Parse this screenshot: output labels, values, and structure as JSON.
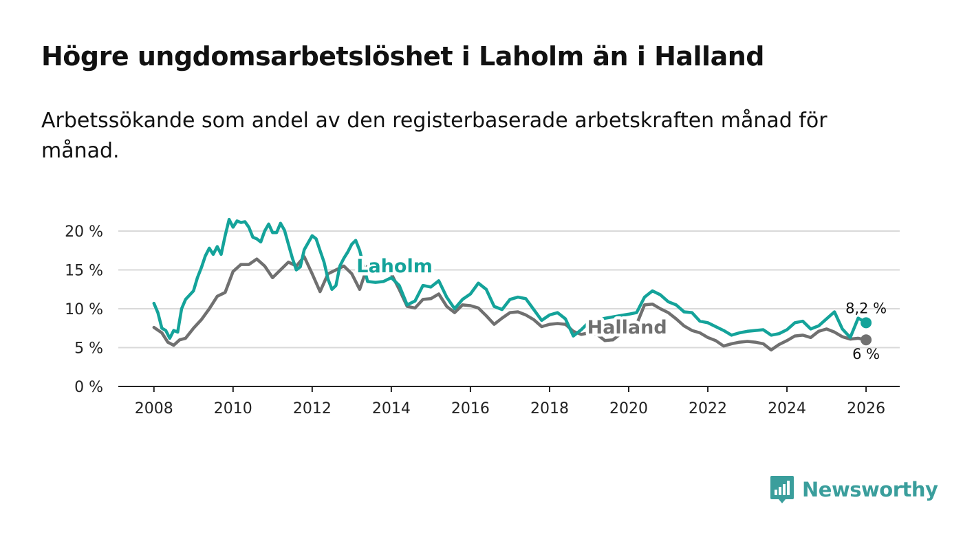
{
  "title": "Högre ungdomsarbetslöshet i Laholm än i Halland",
  "subtitle": "Arbetssökande som andel av den registerbaserade arbetskraften månad för månad.",
  "brand": {
    "name": "Newsworthy",
    "icon": "newsworthy-logo-icon",
    "color": "#3a9e9c"
  },
  "chart_data": {
    "type": "line",
    "xlim": [
      2007.1,
      2026.85
    ],
    "ylim": [
      0,
      20
    ],
    "x_ticks": [
      {
        "value": 2008,
        "label": "2008"
      },
      {
        "value": 2010,
        "label": "2010"
      },
      {
        "value": 2012,
        "label": "2012"
      },
      {
        "value": 2014,
        "label": "2014"
      },
      {
        "value": 2016,
        "label": "2016"
      },
      {
        "value": 2018,
        "label": "2018"
      },
      {
        "value": 2020,
        "label": "2020"
      },
      {
        "value": 2022,
        "label": "2022"
      },
      {
        "value": 2024,
        "label": "2024"
      },
      {
        "value": 2026,
        "label": "2026"
      }
    ],
    "y_ticks": [
      {
        "value": 0,
        "label": "0 %"
      },
      {
        "value": 5,
        "label": "5 %"
      },
      {
        "value": 10,
        "label": "10 %"
      },
      {
        "value": 15,
        "label": "15 %"
      },
      {
        "value": 20,
        "label": "20 %"
      }
    ],
    "grid": true,
    "series": [
      {
        "name": "Halland",
        "color": "#707070",
        "end_label": "6 %",
        "points": [
          [
            2008.0,
            7.6
          ],
          [
            2008.2,
            6.9
          ],
          [
            2008.35,
            5.7
          ],
          [
            2008.5,
            5.3
          ],
          [
            2008.65,
            6.0
          ],
          [
            2008.8,
            6.2
          ],
          [
            2009.0,
            7.5
          ],
          [
            2009.2,
            8.6
          ],
          [
            2009.4,
            10.0
          ],
          [
            2009.6,
            11.6
          ],
          [
            2009.8,
            12.1
          ],
          [
            2010.0,
            14.8
          ],
          [
            2010.2,
            15.7
          ],
          [
            2010.4,
            15.7
          ],
          [
            2010.6,
            16.4
          ],
          [
            2010.8,
            15.5
          ],
          [
            2011.0,
            14.0
          ],
          [
            2011.2,
            15.0
          ],
          [
            2011.4,
            16.0
          ],
          [
            2011.6,
            15.5
          ],
          [
            2011.8,
            16.7
          ],
          [
            2012.0,
            14.5
          ],
          [
            2012.2,
            12.2
          ],
          [
            2012.4,
            14.5
          ],
          [
            2012.6,
            15.0
          ],
          [
            2012.8,
            15.5
          ],
          [
            2013.0,
            14.5
          ],
          [
            2013.2,
            12.5
          ],
          [
            2013.4,
            15.5
          ],
          [
            2013.6,
            15.8
          ],
          [
            2013.8,
            15.4
          ],
          [
            2014.0,
            14.5
          ],
          [
            2014.2,
            12.5
          ],
          [
            2014.4,
            10.3
          ],
          [
            2014.6,
            10.1
          ],
          [
            2014.8,
            11.2
          ],
          [
            2015.0,
            11.3
          ],
          [
            2015.2,
            11.9
          ],
          [
            2015.4,
            10.3
          ],
          [
            2015.6,
            9.5
          ],
          [
            2015.8,
            10.5
          ],
          [
            2016.0,
            10.4
          ],
          [
            2016.2,
            10.1
          ],
          [
            2016.4,
            9.1
          ],
          [
            2016.6,
            8.0
          ],
          [
            2016.8,
            8.8
          ],
          [
            2017.0,
            9.5
          ],
          [
            2017.2,
            9.6
          ],
          [
            2017.4,
            9.2
          ],
          [
            2017.6,
            8.6
          ],
          [
            2017.8,
            7.7
          ],
          [
            2018.0,
            8.0
          ],
          [
            2018.2,
            8.1
          ],
          [
            2018.4,
            8.0
          ],
          [
            2018.6,
            7.1
          ],
          [
            2018.8,
            6.7
          ],
          [
            2019.0,
            6.9
          ],
          [
            2019.2,
            6.7
          ],
          [
            2019.4,
            5.9
          ],
          [
            2019.6,
            6.0
          ],
          [
            2019.8,
            6.8
          ],
          [
            2020.0,
            7.5
          ],
          [
            2020.2,
            8.0
          ],
          [
            2020.4,
            10.5
          ],
          [
            2020.6,
            10.6
          ],
          [
            2020.8,
            10.0
          ],
          [
            2021.0,
            9.5
          ],
          [
            2021.2,
            8.7
          ],
          [
            2021.4,
            7.8
          ],
          [
            2021.6,
            7.2
          ],
          [
            2021.8,
            6.9
          ],
          [
            2022.0,
            6.3
          ],
          [
            2022.2,
            5.9
          ],
          [
            2022.4,
            5.2
          ],
          [
            2022.6,
            5.5
          ],
          [
            2022.8,
            5.7
          ],
          [
            2023.0,
            5.8
          ],
          [
            2023.2,
            5.7
          ],
          [
            2023.4,
            5.5
          ],
          [
            2023.6,
            4.7
          ],
          [
            2023.8,
            5.4
          ],
          [
            2024.0,
            5.9
          ],
          [
            2024.2,
            6.5
          ],
          [
            2024.4,
            6.6
          ],
          [
            2024.6,
            6.3
          ],
          [
            2024.8,
            7.1
          ],
          [
            2025.0,
            7.4
          ],
          [
            2025.2,
            7.0
          ],
          [
            2025.4,
            6.4
          ],
          [
            2025.6,
            6.1
          ],
          [
            2025.8,
            6.2
          ],
          [
            2026.0,
            6.0
          ]
        ]
      },
      {
        "name": "Laholm",
        "color": "#14a39a",
        "end_label": "8,2 %",
        "points": [
          [
            2008.0,
            10.7
          ],
          [
            2008.1,
            9.5
          ],
          [
            2008.2,
            7.5
          ],
          [
            2008.3,
            7.2
          ],
          [
            2008.4,
            6.2
          ],
          [
            2008.5,
            7.2
          ],
          [
            2008.6,
            7.0
          ],
          [
            2008.7,
            10.0
          ],
          [
            2008.8,
            11.2
          ],
          [
            2009.0,
            12.3
          ],
          [
            2009.1,
            14.0
          ],
          [
            2009.2,
            15.3
          ],
          [
            2009.3,
            16.8
          ],
          [
            2009.4,
            17.8
          ],
          [
            2009.5,
            17.0
          ],
          [
            2009.6,
            18.0
          ],
          [
            2009.7,
            17.0
          ],
          [
            2009.8,
            19.4
          ],
          [
            2009.9,
            21.5
          ],
          [
            2010.0,
            20.5
          ],
          [
            2010.1,
            21.3
          ],
          [
            2010.2,
            21.1
          ],
          [
            2010.3,
            21.2
          ],
          [
            2010.4,
            20.5
          ],
          [
            2010.5,
            19.2
          ],
          [
            2010.6,
            19.0
          ],
          [
            2010.7,
            18.6
          ],
          [
            2010.8,
            20.0
          ],
          [
            2010.9,
            20.9
          ],
          [
            2011.0,
            19.8
          ],
          [
            2011.1,
            19.8
          ],
          [
            2011.2,
            21.0
          ],
          [
            2011.3,
            20.1
          ],
          [
            2011.4,
            18.3
          ],
          [
            2011.5,
            16.5
          ],
          [
            2011.6,
            15.0
          ],
          [
            2011.7,
            15.4
          ],
          [
            2011.8,
            17.6
          ],
          [
            2011.9,
            18.5
          ],
          [
            2012.0,
            19.4
          ],
          [
            2012.1,
            19.0
          ],
          [
            2012.2,
            17.5
          ],
          [
            2012.3,
            16.0
          ],
          [
            2012.4,
            13.8
          ],
          [
            2012.5,
            12.5
          ],
          [
            2012.6,
            13.0
          ],
          [
            2012.7,
            15.5
          ],
          [
            2012.8,
            16.5
          ],
          [
            2012.9,
            17.3
          ],
          [
            2013.0,
            18.3
          ],
          [
            2013.1,
            18.8
          ],
          [
            2013.2,
            17.5
          ],
          [
            2013.4,
            13.5
          ],
          [
            2013.6,
            13.4
          ],
          [
            2013.8,
            13.5
          ],
          [
            2014.0,
            14.0
          ],
          [
            2014.2,
            13.0
          ],
          [
            2014.4,
            10.5
          ],
          [
            2014.6,
            11.0
          ],
          [
            2014.8,
            13.0
          ],
          [
            2015.0,
            12.8
          ],
          [
            2015.2,
            13.6
          ],
          [
            2015.4,
            11.5
          ],
          [
            2015.6,
            10.0
          ],
          [
            2015.8,
            11.2
          ],
          [
            2016.0,
            11.9
          ],
          [
            2016.2,
            13.3
          ],
          [
            2016.4,
            12.5
          ],
          [
            2016.6,
            10.3
          ],
          [
            2016.8,
            9.9
          ],
          [
            2017.0,
            11.2
          ],
          [
            2017.2,
            11.5
          ],
          [
            2017.4,
            11.3
          ],
          [
            2017.6,
            9.9
          ],
          [
            2017.8,
            8.5
          ],
          [
            2018.0,
            9.2
          ],
          [
            2018.2,
            9.5
          ],
          [
            2018.4,
            8.7
          ],
          [
            2018.6,
            6.5
          ],
          [
            2018.8,
            7.3
          ],
          [
            2019.0,
            8.3
          ],
          [
            2019.2,
            8.6
          ],
          [
            2020.0,
            9.3
          ],
          [
            2020.2,
            9.5
          ],
          [
            2020.4,
            11.5
          ],
          [
            2020.6,
            12.3
          ],
          [
            2020.8,
            11.8
          ],
          [
            2021.0,
            10.9
          ],
          [
            2021.2,
            10.5
          ],
          [
            2021.4,
            9.6
          ],
          [
            2021.6,
            9.5
          ],
          [
            2021.8,
            8.4
          ],
          [
            2022.0,
            8.2
          ],
          [
            2022.2,
            7.7
          ],
          [
            2022.4,
            7.2
          ],
          [
            2022.6,
            6.6
          ],
          [
            2022.8,
            6.9
          ],
          [
            2023.0,
            7.1
          ],
          [
            2023.2,
            7.2
          ],
          [
            2023.4,
            7.3
          ],
          [
            2023.6,
            6.6
          ],
          [
            2023.8,
            6.8
          ],
          [
            2024.0,
            7.3
          ],
          [
            2024.2,
            8.2
          ],
          [
            2024.4,
            8.4
          ],
          [
            2024.6,
            7.4
          ],
          [
            2024.8,
            7.8
          ],
          [
            2025.0,
            8.7
          ],
          [
            2025.2,
            9.6
          ],
          [
            2025.4,
            7.4
          ],
          [
            2025.6,
            6.3
          ],
          [
            2025.8,
            8.8
          ],
          [
            2026.0,
            8.2
          ]
        ]
      }
    ]
  }
}
